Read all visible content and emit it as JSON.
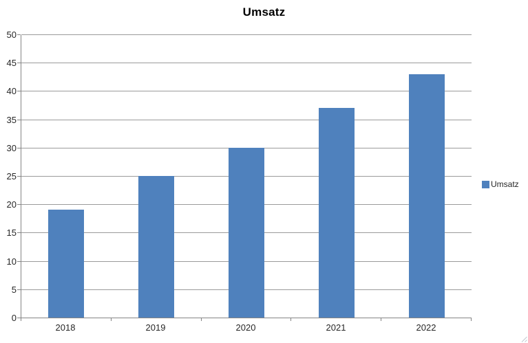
{
  "chart_data": {
    "type": "bar",
    "title": "Umsatz",
    "categories": [
      "2018",
      "2019",
      "2020",
      "2021",
      "2022"
    ],
    "values": [
      19,
      25,
      30,
      37,
      43
    ],
    "series_name": "Umsatz",
    "xlabel": "",
    "ylabel": "",
    "ylim": [
      0,
      50
    ],
    "ytick_step": 5,
    "grid": true,
    "legend": {
      "position": "right",
      "entries": [
        "Umsatz"
      ]
    },
    "colors": {
      "bar": "#4F81BD",
      "gridline": "#9A9A9A",
      "axis": "#848484",
      "label_text": "#262626",
      "title_text": "#000000"
    }
  }
}
